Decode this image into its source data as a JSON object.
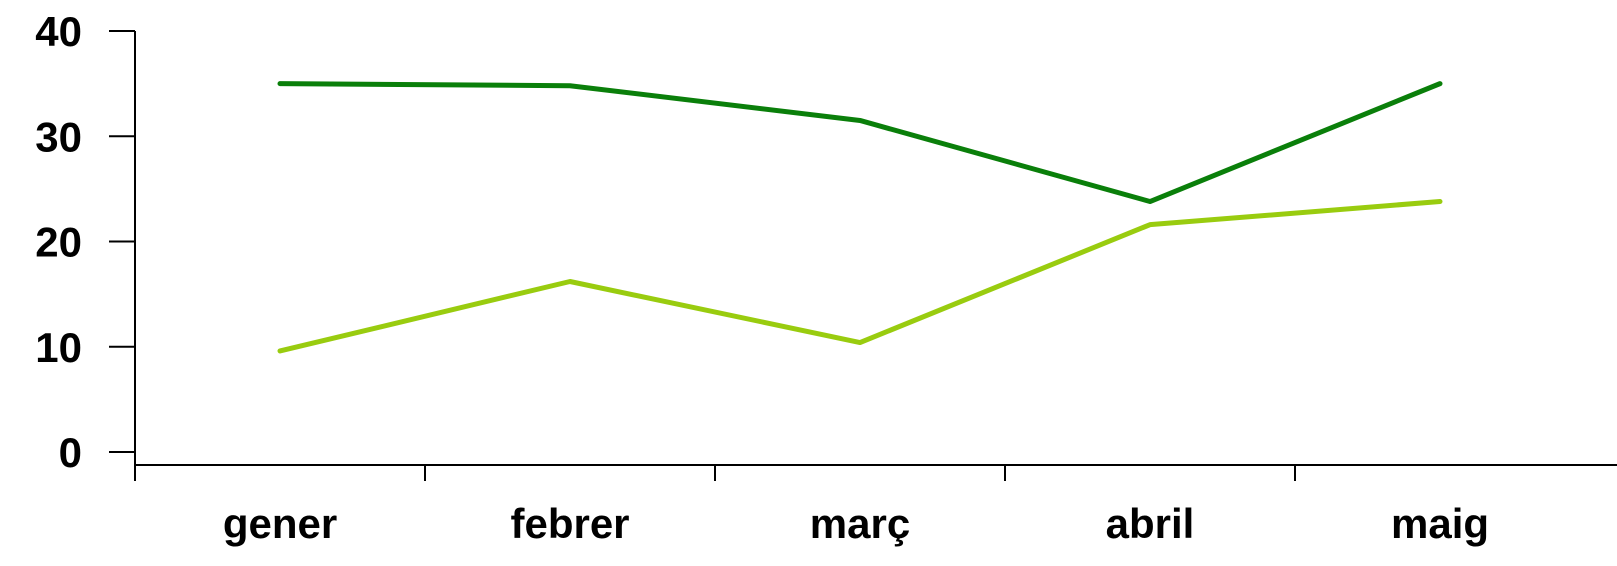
{
  "chart_data": {
    "type": "line",
    "categories": [
      "gener",
      "febrer",
      "març",
      "abril",
      "maig"
    ],
    "series": [
      {
        "values": [
          35,
          34.8,
          31.5,
          23.8,
          35
        ],
        "color": "#0a7f0a"
      },
      {
        "values": [
          9.6,
          16.2,
          10.4,
          21.6,
          23.8
        ],
        "color": "#99cc0f"
      }
    ],
    "yticks": [
      0,
      10,
      20,
      30,
      40
    ],
    "ylim": [
      0,
      40
    ],
    "title": "",
    "xlabel": "",
    "ylabel": "",
    "grid": false,
    "legend": "none"
  }
}
